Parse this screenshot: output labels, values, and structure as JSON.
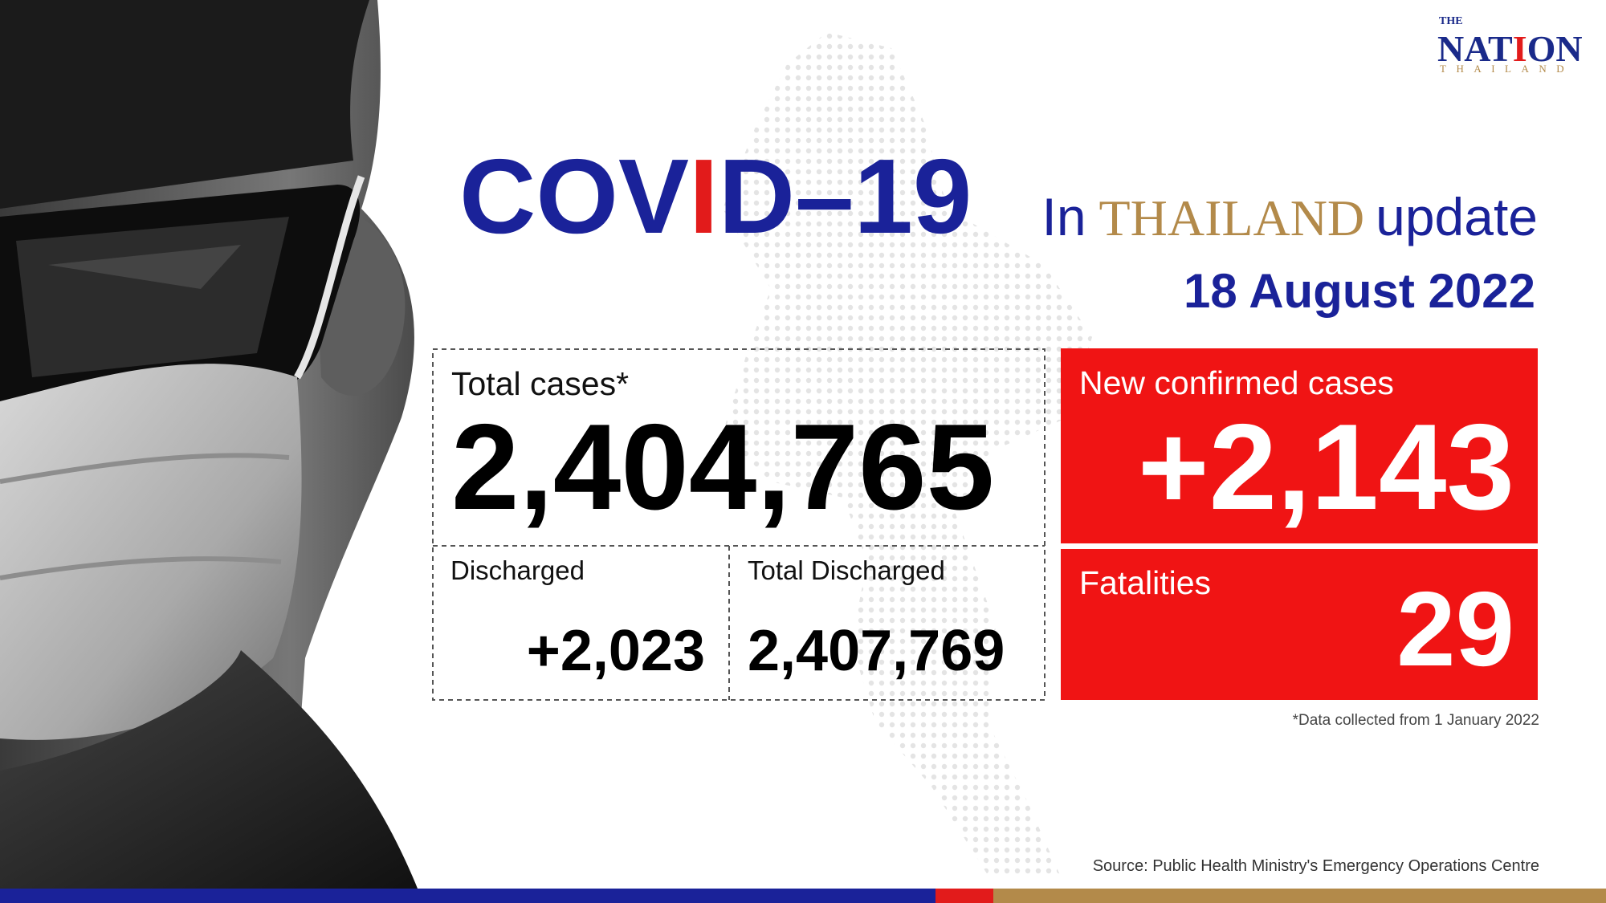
{
  "logo": {
    "top": "THE",
    "name": [
      "NAT",
      "I",
      "ON"
    ],
    "bottom": "THAILAND"
  },
  "title": {
    "parts": [
      "COV",
      "I",
      "D–19"
    ],
    "in": "In",
    "country": "THAILAND",
    "update": "update"
  },
  "date": "18 August 2022",
  "total_cases": {
    "label": "Total cases*",
    "value": "2,404,765"
  },
  "discharged": {
    "label": "Discharged",
    "value": "+2,023"
  },
  "total_discharged": {
    "label": "Total Discharged",
    "value": "2,407,769"
  },
  "new_cases": {
    "label": "New confirmed cases",
    "value": "+2,143"
  },
  "fatalities": {
    "label": "Fatalities",
    "value": "29"
  },
  "footnote": "*Data collected from 1 January 2022",
  "source": "Source: Public Health Ministry's Emergency Operations Centre"
}
